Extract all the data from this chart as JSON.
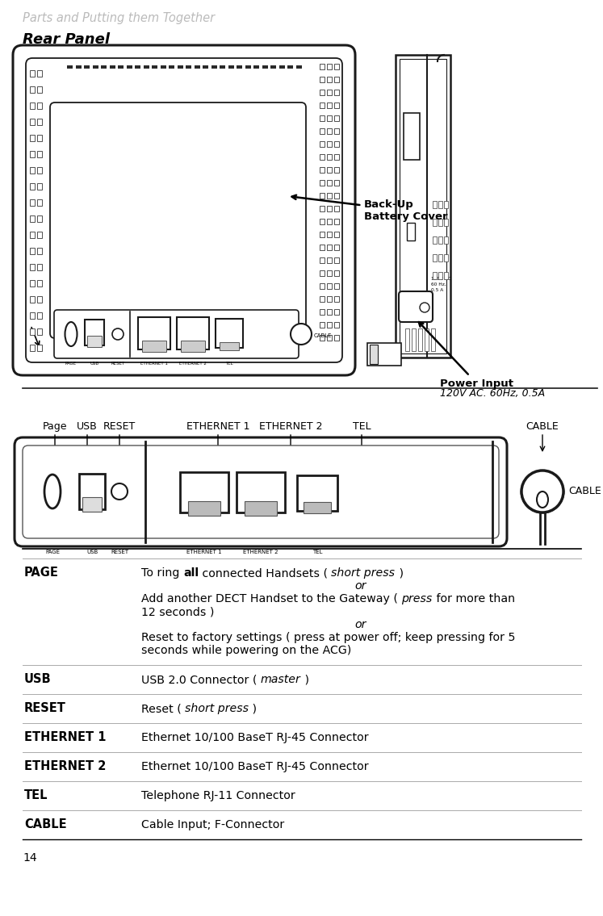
{
  "page_number": "14",
  "chapter_title": "Parts and Putting them Together",
  "section_title": "Rear Panel",
  "bg_color": "#ffffff",
  "chapter_title_color": "#bbbbbb",
  "annotation_backup_battery": "Back-Up\nBattery Cover",
  "annotation_power_input": "Power Input",
  "annotation_power_sub": "120V AC. 60Hz, 0.5A",
  "table_rows": [
    {
      "term": "PAGE",
      "lines": [
        [
          {
            "text": "To ring ",
            "style": "normal"
          },
          {
            "text": "all",
            "style": "bold"
          },
          {
            "text": " connected Handsets ( ",
            "style": "normal"
          },
          {
            "text": "short press",
            "style": "italic"
          },
          {
            "text": " )",
            "style": "normal"
          }
        ],
        [
          {
            "text": "or",
            "style": "italic_center"
          }
        ],
        [
          {
            "text": "Add another DECT Handset to the Gateway ( ",
            "style": "normal"
          },
          {
            "text": "press",
            "style": "italic"
          },
          {
            "text": " for more than",
            "style": "normal"
          }
        ],
        [
          {
            "text": "12 seconds )",
            "style": "normal"
          }
        ],
        [
          {
            "text": "or",
            "style": "italic_center"
          }
        ],
        [
          {
            "text": "Reset to factory settings ( press at power off; keep pressing for 5",
            "style": "normal"
          }
        ],
        [
          {
            "text": "seconds while powering on the ACG)",
            "style": "normal"
          }
        ]
      ]
    },
    {
      "term": "USB",
      "lines": [
        [
          {
            "text": "USB 2.0 Connector ( ",
            "style": "normal"
          },
          {
            "text": "master",
            "style": "italic"
          },
          {
            "text": " )",
            "style": "normal"
          }
        ]
      ]
    },
    {
      "term": "RESET",
      "lines": [
        [
          {
            "text": "Reset ( ",
            "style": "normal"
          },
          {
            "text": "short press",
            "style": "italic"
          },
          {
            "text": " )",
            "style": "normal"
          }
        ]
      ]
    },
    {
      "term": "ETHERNET 1",
      "lines": [
        [
          {
            "text": "Ethernet 10/100 BaseT RJ-45 Connector",
            "style": "normal"
          }
        ]
      ]
    },
    {
      "term": "ETHERNET 2",
      "lines": [
        [
          {
            "text": "Ethernet 10/100 BaseT RJ-45 Connector",
            "style": "normal"
          }
        ]
      ]
    },
    {
      "term": "TEL",
      "lines": [
        [
          {
            "text": "Telephone RJ-11 Connector",
            "style": "normal"
          }
        ]
      ]
    },
    {
      "term": "CABLE",
      "lines": [
        [
          {
            "text": "Cable Input; F-Connector",
            "style": "normal"
          }
        ]
      ]
    }
  ]
}
